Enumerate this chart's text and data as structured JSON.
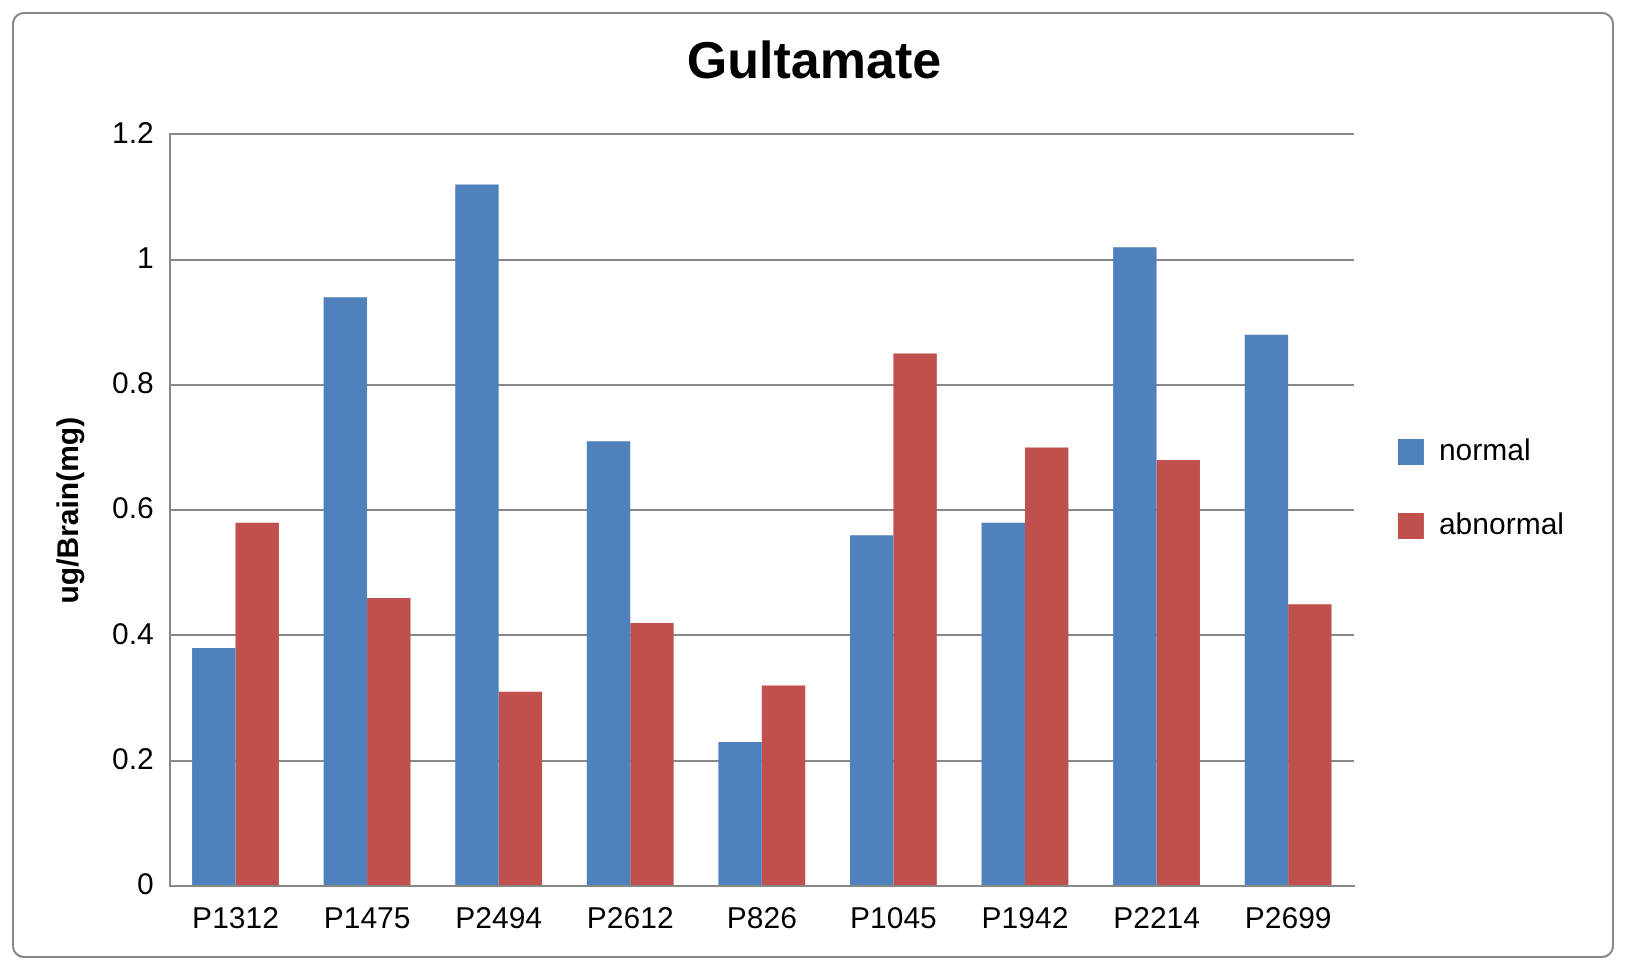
{
  "chart_data": {
    "type": "bar",
    "title": "Gultamate",
    "ylabel": "ug/Brain(mg)",
    "categories": [
      "P1312",
      "P1475",
      "P2494",
      "P2612",
      "P826",
      "P1045",
      "P1942",
      "P2214",
      "P2699"
    ],
    "series": [
      {
        "name": "normal",
        "color": "#4f81bd",
        "values": [
          0.38,
          0.94,
          1.12,
          0.71,
          0.23,
          0.56,
          0.58,
          1.02,
          0.88
        ]
      },
      {
        "name": "abnormal",
        "color": "#c0504d",
        "values": [
          0.58,
          0.46,
          0.31,
          0.42,
          0.32,
          0.85,
          0.7,
          0.68,
          0.45
        ]
      }
    ],
    "ylim": [
      0,
      1.2
    ],
    "yticks": [
      0,
      0.2,
      0.4,
      0.6,
      0.8,
      1,
      1.2
    ],
    "grid": "y",
    "legend": "right"
  }
}
